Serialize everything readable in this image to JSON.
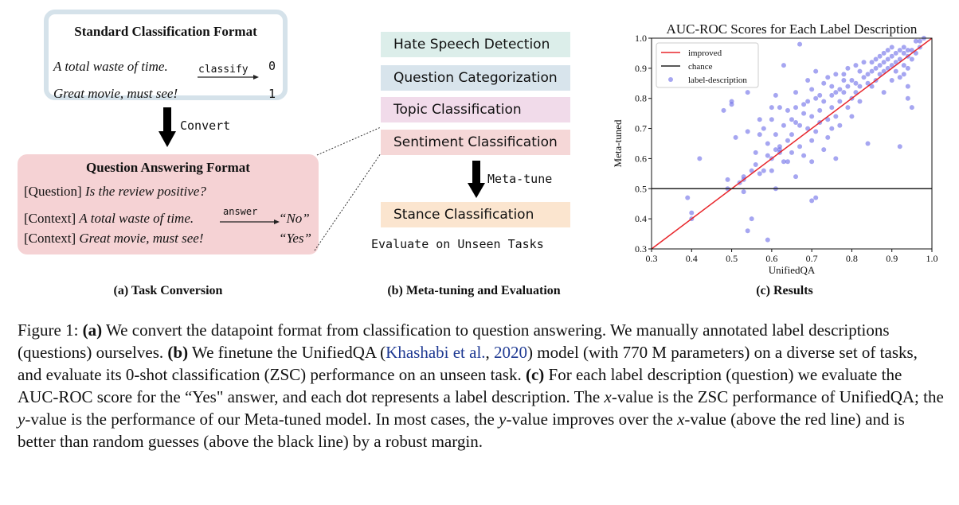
{
  "panel_a": {
    "standard_title": "Standard Classification Format",
    "examples": [
      {
        "text": "A total waste of time.",
        "label": "0"
      },
      {
        "text": "Great movie, must see!",
        "label": "1"
      }
    ],
    "classify_label": "classify",
    "convert_label": "Convert",
    "qa_title": "Question Answering Format",
    "question_prefix": "[Question]",
    "question_text": "Is the review positive?",
    "answer_label": "answer",
    "context_prefix": "[Context]",
    "contexts": [
      {
        "text": "A total waste of time.",
        "answer": "“No”"
      },
      {
        "text": "Great movie, must see!",
        "answer": "“Yes”"
      }
    ],
    "caption": "(a) Task Conversion"
  },
  "panel_b": {
    "tasks": [
      {
        "label": "Hate Speech Detection",
        "color": "#dceeea"
      },
      {
        "label": "Question Categorization",
        "color": "#d8e4ec"
      },
      {
        "label": "Topic Classification",
        "color": "#f1dbea"
      },
      {
        "label": "Sentiment Classification",
        "color": "#f5d7d7"
      }
    ],
    "metatune_label": "Meta-tune",
    "target_task": {
      "label": "Stance Classification",
      "color": "#fbe5cf"
    },
    "evaluate_label": "Evaluate on Unseen Tasks",
    "caption": "(b) Meta-tuning and Evaluation"
  },
  "panel_c": {
    "caption": "(c) Results"
  },
  "chart_data": {
    "type": "scatter",
    "title": "AUC-ROC Scores for Each Label Description",
    "xlabel": "UnifiedQA",
    "ylabel": "Meta-tuned",
    "xlim": [
      0.3,
      1.0
    ],
    "ylim": [
      0.3,
      1.0
    ],
    "xticks": [
      "0.3",
      "0.4",
      "0.5",
      "0.6",
      "0.7",
      "0.8",
      "0.9",
      "1.0"
    ],
    "yticks": [
      "0.3",
      "0.4",
      "0.5",
      "0.6",
      "0.7",
      "0.8",
      "0.9",
      "1.0"
    ],
    "legend_position": "top-left",
    "series": [
      {
        "name": "improved",
        "kind": "line",
        "color": "#e8262b",
        "points": [
          [
            0.3,
            0.3
          ],
          [
            1.0,
            1.0
          ]
        ]
      },
      {
        "name": "chance",
        "kind": "line",
        "color": "#222222",
        "points": [
          [
            0.3,
            0.5
          ],
          [
            1.0,
            0.5
          ]
        ]
      },
      {
        "name": "label-description",
        "kind": "scatter",
        "color": "#6a6ae8",
        "points": [
          [
            0.39,
            0.47
          ],
          [
            0.4,
            0.4
          ],
          [
            0.4,
            0.42
          ],
          [
            0.42,
            0.6
          ],
          [
            0.48,
            0.76
          ],
          [
            0.49,
            0.5
          ],
          [
            0.49,
            0.53
          ],
          [
            0.5,
            0.79
          ],
          [
            0.5,
            0.78
          ],
          [
            0.51,
            0.67
          ],
          [
            0.52,
            0.52
          ],
          [
            0.53,
            0.53
          ],
          [
            0.53,
            0.49
          ],
          [
            0.53,
            0.54
          ],
          [
            0.54,
            0.36
          ],
          [
            0.54,
            0.69
          ],
          [
            0.54,
            0.82
          ],
          [
            0.55,
            0.4
          ],
          [
            0.55,
            0.56
          ],
          [
            0.56,
            0.62
          ],
          [
            0.56,
            0.58
          ],
          [
            0.57,
            0.55
          ],
          [
            0.57,
            0.73
          ],
          [
            0.57,
            0.68
          ],
          [
            0.58,
            0.56
          ],
          [
            0.58,
            0.7
          ],
          [
            0.59,
            0.61
          ],
          [
            0.59,
            0.65
          ],
          [
            0.59,
            0.33
          ],
          [
            0.6,
            0.6
          ],
          [
            0.6,
            0.77
          ],
          [
            0.6,
            0.56
          ],
          [
            0.6,
            0.73
          ],
          [
            0.61,
            0.81
          ],
          [
            0.61,
            0.68
          ],
          [
            0.61,
            0.63
          ],
          [
            0.61,
            0.5
          ],
          [
            0.62,
            0.63
          ],
          [
            0.62,
            0.62
          ],
          [
            0.62,
            0.77
          ],
          [
            0.62,
            0.64
          ],
          [
            0.63,
            0.59
          ],
          [
            0.63,
            0.91
          ],
          [
            0.63,
            0.71
          ],
          [
            0.64,
            0.76
          ],
          [
            0.64,
            0.66
          ],
          [
            0.64,
            0.59
          ],
          [
            0.65,
            0.73
          ],
          [
            0.65,
            0.68
          ],
          [
            0.65,
            0.62
          ],
          [
            0.66,
            0.72
          ],
          [
            0.66,
            0.77
          ],
          [
            0.66,
            0.82
          ],
          [
            0.66,
            0.54
          ],
          [
            0.67,
            0.64
          ],
          [
            0.67,
            0.98
          ],
          [
            0.67,
            0.71
          ],
          [
            0.68,
            0.61
          ],
          [
            0.68,
            0.75
          ],
          [
            0.68,
            0.78
          ],
          [
            0.69,
            0.7
          ],
          [
            0.69,
            0.86
          ],
          [
            0.69,
            0.79
          ],
          [
            0.7,
            0.66
          ],
          [
            0.7,
            0.74
          ],
          [
            0.7,
            0.83
          ],
          [
            0.7,
            0.59
          ],
          [
            0.7,
            0.46
          ],
          [
            0.71,
            0.69
          ],
          [
            0.71,
            0.8
          ],
          [
            0.71,
            0.89
          ],
          [
            0.71,
            0.47
          ],
          [
            0.72,
            0.76
          ],
          [
            0.72,
            0.72
          ],
          [
            0.72,
            0.81
          ],
          [
            0.73,
            0.79
          ],
          [
            0.73,
            0.85
          ],
          [
            0.73,
            0.63
          ],
          [
            0.74,
            0.73
          ],
          [
            0.74,
            0.87
          ],
          [
            0.74,
            0.67
          ],
          [
            0.75,
            0.81
          ],
          [
            0.75,
            0.77
          ],
          [
            0.75,
            0.7
          ],
          [
            0.75,
            0.84
          ],
          [
            0.76,
            0.88
          ],
          [
            0.76,
            0.82
          ],
          [
            0.76,
            0.74
          ],
          [
            0.76,
            0.6
          ],
          [
            0.77,
            0.83
          ],
          [
            0.77,
            0.79
          ],
          [
            0.77,
            0.71
          ],
          [
            0.78,
            0.86
          ],
          [
            0.78,
            0.82
          ],
          [
            0.78,
            0.88
          ],
          [
            0.79,
            0.77
          ],
          [
            0.79,
            0.84
          ],
          [
            0.79,
            0.9
          ],
          [
            0.8,
            0.8
          ],
          [
            0.8,
            0.86
          ],
          [
            0.8,
            0.74
          ],
          [
            0.81,
            0.85
          ],
          [
            0.81,
            0.91
          ],
          [
            0.81,
            0.82
          ],
          [
            0.82,
            0.89
          ],
          [
            0.82,
            0.84
          ],
          [
            0.82,
            0.79
          ],
          [
            0.83,
            0.87
          ],
          [
            0.83,
            0.92
          ],
          [
            0.84,
            0.85
          ],
          [
            0.84,
            0.88
          ],
          [
            0.84,
            0.65
          ],
          [
            0.85,
            0.92
          ],
          [
            0.85,
            0.89
          ],
          [
            0.85,
            0.84
          ],
          [
            0.86,
            0.9
          ],
          [
            0.86,
            0.93
          ],
          [
            0.86,
            0.86
          ],
          [
            0.87,
            0.94
          ],
          [
            0.87,
            0.91
          ],
          [
            0.87,
            0.88
          ],
          [
            0.88,
            0.92
          ],
          [
            0.88,
            0.95
          ],
          [
            0.88,
            0.89
          ],
          [
            0.88,
            0.82
          ],
          [
            0.89,
            0.93
          ],
          [
            0.89,
            0.96
          ],
          [
            0.89,
            0.9
          ],
          [
            0.9,
            0.94
          ],
          [
            0.9,
            0.91
          ],
          [
            0.9,
            0.97
          ],
          [
            0.9,
            0.86
          ],
          [
            0.91,
            0.95
          ],
          [
            0.91,
            0.92
          ],
          [
            0.91,
            0.89
          ],
          [
            0.92,
            0.96
          ],
          [
            0.92,
            0.93
          ],
          [
            0.92,
            0.87
          ],
          [
            0.92,
            0.64
          ],
          [
            0.93,
            0.95
          ],
          [
            0.93,
            0.91
          ],
          [
            0.93,
            0.97
          ],
          [
            0.93,
            0.88
          ],
          [
            0.94,
            0.94
          ],
          [
            0.94,
            0.96
          ],
          [
            0.94,
            0.9
          ],
          [
            0.94,
            0.8
          ],
          [
            0.94,
            0.84
          ],
          [
            0.95,
            0.96
          ],
          [
            0.95,
            0.93
          ],
          [
            0.95,
            0.77
          ],
          [
            0.96,
            0.99
          ],
          [
            0.97,
            0.99
          ],
          [
            0.98,
            1.0
          ],
          [
            0.96,
            0.95
          ],
          [
            0.97,
            0.97
          ]
        ]
      }
    ]
  },
  "caption": {
    "fig_label": "Figure 1:",
    "a_tag": "(a)",
    "a_text": " We convert the datapoint format from classification to question answering. We manually annotated label descriptions (questions) ourselves. ",
    "b_tag": "(b)",
    "b_text_1": " We finetune the UnifiedQA (",
    "citation_authors": "Khashabi et al.",
    "citation_sep": ", ",
    "citation_year": "2020",
    "b_text_2": ") model (with 770 M parameters) on a diverse set of tasks, and evaluate its 0-shot classification (ZSC) performance on an unseen task. ",
    "c_tag": "(c)",
    "c_text_1": " For each label description (question) we evaluate the AUC-ROC score for the “Yes\" answer, and each dot represents a label description. The ",
    "x_var": "x",
    "c_text_2": "-value is the ZSC performance of UnifiedQA; the ",
    "y_var": "y",
    "c_text_3": "-value is the performance of our Meta-tuned model. In most cases, the ",
    "c_text_4": "-value improves over the ",
    "c_text_5": "-value (above the red line) and is better than random guesses (above the black line) by a robust margin."
  }
}
